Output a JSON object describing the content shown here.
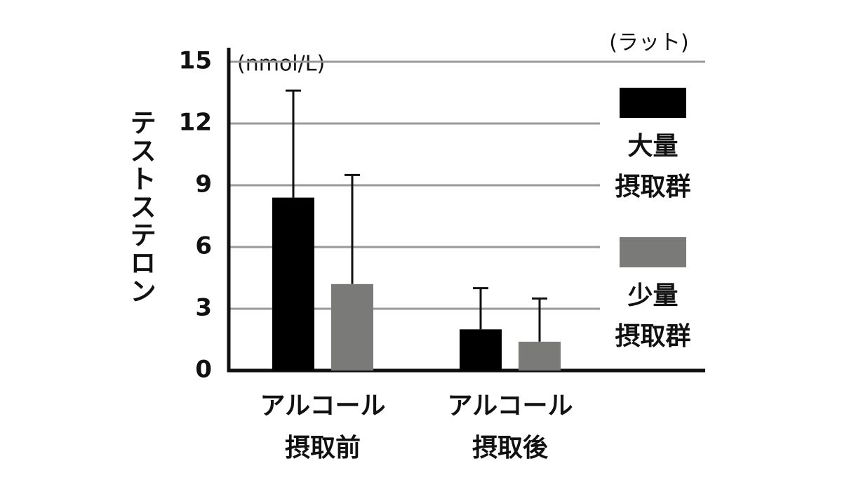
{
  "chart_data": {
    "type": "bar",
    "y_label": "テストステロン",
    "unit_annotation": "(nmol/L)",
    "subject_annotation": "(ラット)",
    "categories": [
      [
        "アルコール",
        "摂取前"
      ],
      [
        "アルコール",
        "摂取後"
      ]
    ],
    "series": [
      {
        "name": [
          "大量",
          "摂取群"
        ],
        "color": "#000000",
        "values": [
          8.4,
          2.0
        ],
        "errors": [
          5.2,
          2.0
        ]
      },
      {
        "name": [
          "少量",
          "摂取群"
        ],
        "color": "#7a7a78",
        "values": [
          4.2,
          1.4
        ],
        "errors": [
          5.3,
          2.1
        ]
      }
    ],
    "ylim": [
      0,
      15
    ],
    "yticks": [
      0,
      3,
      6,
      9,
      12,
      15
    ],
    "grid": true,
    "legend": "right"
  }
}
